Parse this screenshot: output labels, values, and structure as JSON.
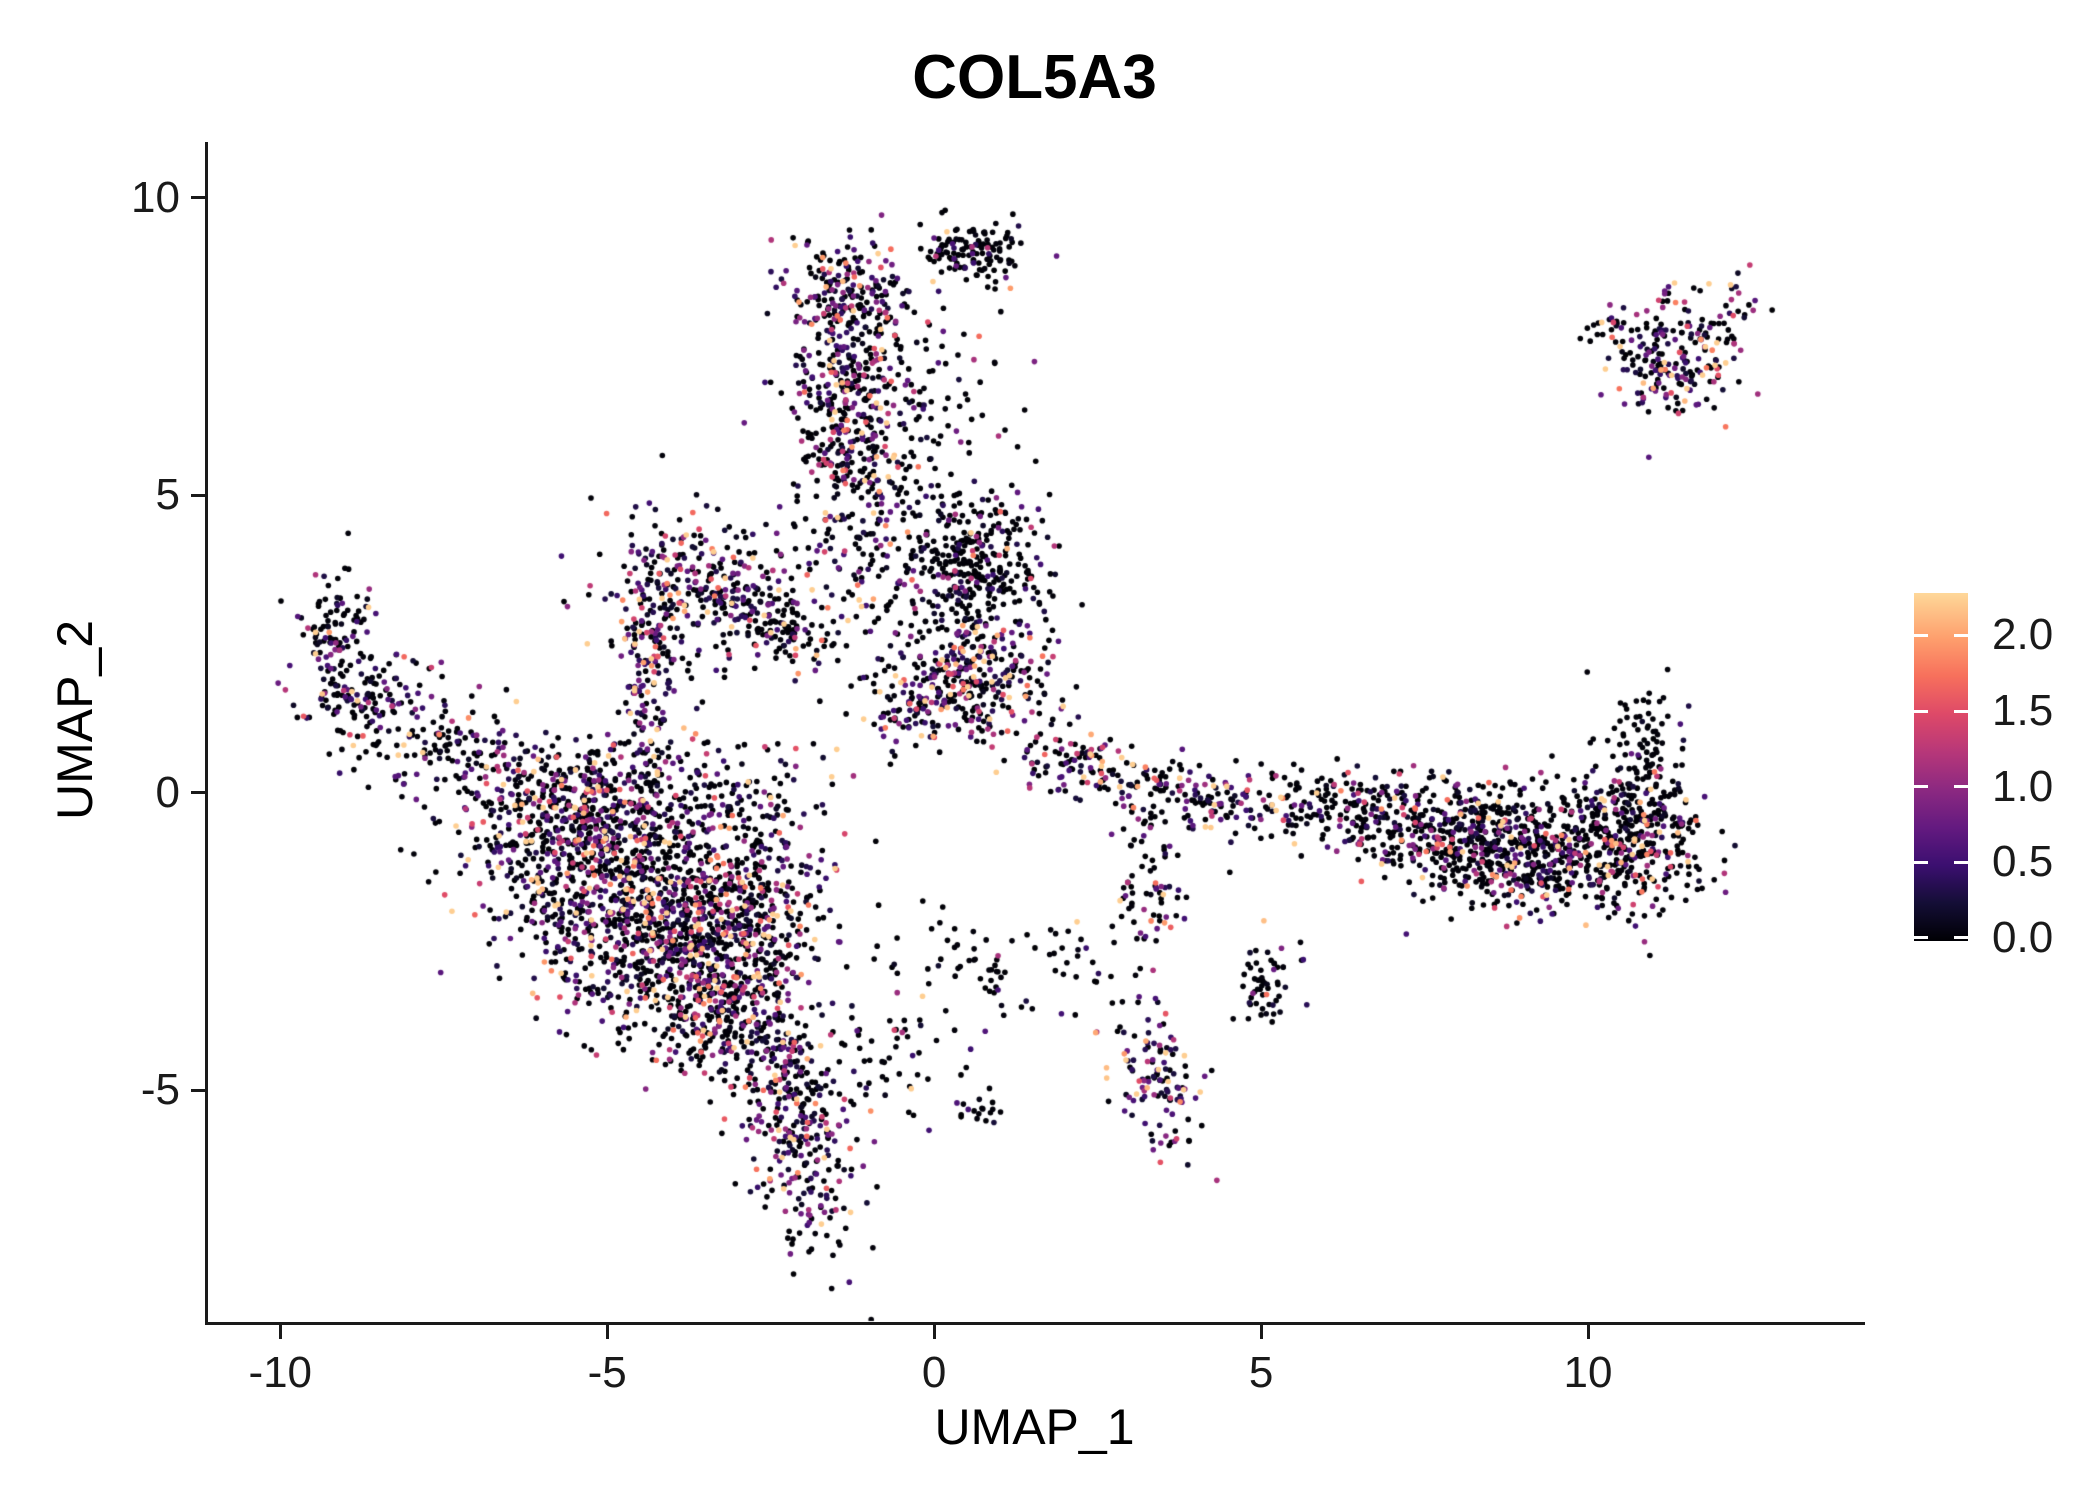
{
  "title": "COL5A3",
  "x_axis": {
    "label": "UMAP_1",
    "ticks": [
      {
        "value": -10,
        "label": "-10"
      },
      {
        "value": -5,
        "label": "-5"
      },
      {
        "value": 0,
        "label": "0"
      },
      {
        "value": 5,
        "label": "5"
      },
      {
        "value": 10,
        "label": "10"
      }
    ]
  },
  "y_axis": {
    "label": "UMAP_2",
    "ticks": [
      {
        "value": -5,
        "label": "-5"
      },
      {
        "value": 0,
        "label": "0"
      },
      {
        "value": 5,
        "label": "5"
      },
      {
        "value": 10,
        "label": "10"
      }
    ]
  },
  "legend": {
    "bar_range": [
      -0.02,
      2.28
    ],
    "ticks": [
      {
        "value": 2.0,
        "label": "2.0"
      },
      {
        "value": 1.5,
        "label": "1.5"
      },
      {
        "value": 1.0,
        "label": "1.0"
      },
      {
        "value": 0.5,
        "label": "0.5"
      },
      {
        "value": 0.0,
        "label": "0.0"
      }
    ]
  },
  "chart_data": {
    "type": "scatter",
    "title": "COL5A3",
    "xlabel": "UMAP_1",
    "ylabel": "UMAP_2",
    "xlim": [
      -11.12,
      14.19
    ],
    "ylim": [
      -8.91,
      10.92
    ],
    "grid": false,
    "legend_position": "right",
    "point_radius_px": 2.8,
    "seed": 20240,
    "color_scale": {
      "name": "magma_truncated",
      "domain": [
        0,
        2.35
      ],
      "stops": [
        {
          "t": 0.0,
          "color": "#000004"
        },
        {
          "t": 0.109,
          "color": "#140e36"
        },
        {
          "t": 0.217,
          "color": "#3b0f70"
        },
        {
          "t": 0.326,
          "color": "#641a80"
        },
        {
          "t": 0.435,
          "color": "#8c2981"
        },
        {
          "t": 0.543,
          "color": "#b73779"
        },
        {
          "t": 0.652,
          "color": "#de4968"
        },
        {
          "t": 0.761,
          "color": "#f7705c"
        },
        {
          "t": 0.87,
          "color": "#fe9f6d"
        },
        {
          "t": 0.978,
          "color": "#fece91"
        },
        {
          "t": 1.0,
          "color": "#fed89a"
        }
      ]
    },
    "clusters": [
      {
        "name": "top-cap-black",
        "center": [
          0.55,
          9.1
        ],
        "sd": [
          0.38,
          0.26
        ],
        "rot_deg": 0,
        "n": 130,
        "frac_zero": 0.85,
        "expr_mean": 0.5
      },
      {
        "name": "top-blob-mixed",
        "center": [
          -1.25,
          8.35
        ],
        "sd": [
          0.5,
          0.4
        ],
        "rot_deg": -20,
        "n": 150,
        "frac_zero": 0.45,
        "expr_mean": 0.9
      },
      {
        "name": "north-stem",
        "center": [
          -1.35,
          6.6
        ],
        "sd": [
          0.45,
          1.15
        ],
        "rot_deg": 0,
        "n": 430,
        "frac_zero": 0.5,
        "expr_mean": 0.9
      },
      {
        "name": "north-stem-east",
        "center": [
          -0.35,
          6.0
        ],
        "sd": [
          0.75,
          1.2
        ],
        "rot_deg": 0,
        "n": 160,
        "frac_zero": 0.72,
        "expr_mean": 0.7
      },
      {
        "name": "mid-triangle",
        "center": [
          -3.6,
          3.5
        ],
        "sd": [
          0.85,
          0.7
        ],
        "rot_deg": 0,
        "n": 270,
        "frac_zero": 0.45,
        "expr_mean": 0.9
      },
      {
        "name": "mid-column",
        "center": [
          -4.35,
          2.3
        ],
        "sd": [
          0.22,
          0.95
        ],
        "rot_deg": 0,
        "n": 150,
        "frac_zero": 0.35,
        "expr_mean": 1.0
      },
      {
        "name": "triangle-tail",
        "center": [
          -2.55,
          2.85
        ],
        "sd": [
          0.6,
          0.25
        ],
        "rot_deg": -35,
        "n": 110,
        "frac_zero": 0.6,
        "expr_mean": 0.8
      },
      {
        "name": "north-knot-black",
        "center": [
          0.55,
          3.95
        ],
        "sd": [
          0.55,
          0.5
        ],
        "rot_deg": 0,
        "n": 280,
        "frac_zero": 0.75,
        "expr_mean": 0.7
      },
      {
        "name": "band-east",
        "center": [
          0.65,
          1.95
        ],
        "sd": [
          0.55,
          0.5
        ],
        "rot_deg": 0,
        "n": 240,
        "frac_zero": 0.4,
        "expr_mean": 1.0
      },
      {
        "name": "band-west",
        "center": [
          -0.2,
          1.45
        ],
        "sd": [
          0.5,
          0.3
        ],
        "rot_deg": 15,
        "n": 90,
        "frac_zero": 0.4,
        "expr_mean": 1.0
      },
      {
        "name": "center-sparse",
        "center": [
          -0.5,
          2.9
        ],
        "sd": [
          1.1,
          1.0
        ],
        "rot_deg": 0,
        "n": 200,
        "frac_zero": 0.6,
        "expr_mean": 0.8
      },
      {
        "name": "hook-tip",
        "center": [
          -9.15,
          2.7
        ],
        "sd": [
          0.28,
          0.55
        ],
        "rot_deg": 0,
        "n": 100,
        "frac_zero": 0.5,
        "expr_mean": 0.9
      },
      {
        "name": "hook-bend",
        "center": [
          -8.7,
          1.6
        ],
        "sd": [
          0.5,
          0.35
        ],
        "rot_deg": 20,
        "n": 120,
        "frac_zero": 0.55,
        "expr_mean": 0.8
      },
      {
        "name": "left-arm",
        "center": [
          -7.4,
          0.7
        ],
        "sd": [
          0.85,
          0.4
        ],
        "rot_deg": -15,
        "n": 150,
        "frac_zero": 0.6,
        "expr_mean": 0.8
      },
      {
        "name": "mass-northwest",
        "center": [
          -5.8,
          -0.4
        ],
        "sd": [
          0.75,
          0.55
        ],
        "rot_deg": 0,
        "n": 260,
        "frac_zero": 0.55,
        "expr_mean": 0.9
      },
      {
        "name": "mass-top",
        "center": [
          -4.4,
          0.1
        ],
        "sd": [
          1.1,
          0.5
        ],
        "rot_deg": 0,
        "n": 220,
        "frac_zero": 0.6,
        "expr_mean": 0.8
      },
      {
        "name": "mass-core",
        "center": [
          -4.9,
          -1.4
        ],
        "sd": [
          1.0,
          0.85
        ],
        "rot_deg": 0,
        "n": 720,
        "frac_zero": 0.5,
        "expr_mean": 0.9
      },
      {
        "name": "mass-mid",
        "center": [
          -3.9,
          -2.6
        ],
        "sd": [
          0.85,
          0.8
        ],
        "rot_deg": 0,
        "n": 620,
        "frac_zero": 0.5,
        "expr_mean": 0.9
      },
      {
        "name": "mass-low",
        "center": [
          -3.15,
          -3.8
        ],
        "sd": [
          0.55,
          0.6
        ],
        "rot_deg": 0,
        "n": 260,
        "frac_zero": 0.5,
        "expr_mean": 0.9
      },
      {
        "name": "mass-east",
        "center": [
          -2.7,
          -1.6
        ],
        "sd": [
          0.55,
          0.95
        ],
        "rot_deg": 0,
        "n": 260,
        "frac_zero": 0.55,
        "expr_mean": 0.9
      },
      {
        "name": "south-stem",
        "center": [
          -2.1,
          -5.7
        ],
        "sd": [
          0.38,
          1.05
        ],
        "rot_deg": 8,
        "n": 320,
        "frac_zero": 0.45,
        "expr_mean": 0.9
      },
      {
        "name": "south-sparse",
        "center": [
          -1.0,
          -4.4
        ],
        "sd": [
          0.7,
          0.6
        ],
        "rot_deg": 0,
        "n": 70,
        "frac_zero": 0.7,
        "expr_mean": 0.8
      },
      {
        "name": "arm-west",
        "center": [
          2.2,
          0.5
        ],
        "sd": [
          0.55,
          0.3
        ],
        "rot_deg": -10,
        "n": 110,
        "frac_zero": 0.5,
        "expr_mean": 0.9
      },
      {
        "name": "arm-east",
        "center": [
          3.8,
          -0.05
        ],
        "sd": [
          0.75,
          0.3
        ],
        "rot_deg": -8,
        "n": 120,
        "frac_zero": 0.55,
        "expr_mean": 0.9
      },
      {
        "name": "arm-branch",
        "center": [
          3.3,
          -1.5
        ],
        "sd": [
          0.28,
          0.7
        ],
        "rot_deg": 0,
        "n": 80,
        "frac_zero": 0.5,
        "expr_mean": 1.0
      },
      {
        "name": "south-isle",
        "center": [
          3.45,
          -4.9
        ],
        "sd": [
          0.28,
          0.6
        ],
        "rot_deg": 15,
        "n": 120,
        "frac_zero": 0.35,
        "expr_mean": 1.0
      },
      {
        "name": "black-band",
        "center": [
          1.2,
          -2.9
        ],
        "sd": [
          1.2,
          0.4
        ],
        "rot_deg": -8,
        "n": 80,
        "frac_zero": 0.85,
        "expr_mean": 0.6
      },
      {
        "name": "black-knot",
        "center": [
          5.0,
          -3.2
        ],
        "sd": [
          0.25,
          0.3
        ],
        "rot_deg": 0,
        "n": 55,
        "frac_zero": 0.8,
        "expr_mean": 0.6
      },
      {
        "name": "tiny-pair",
        "center": [
          0.7,
          -5.3
        ],
        "sd": [
          0.18,
          0.15
        ],
        "rot_deg": 0,
        "n": 16,
        "frac_zero": 0.9,
        "expr_mean": 0.4
      },
      {
        "name": "right-tip",
        "center": [
          6.4,
          -0.3
        ],
        "sd": [
          0.6,
          0.35
        ],
        "rot_deg": -10,
        "n": 90,
        "frac_zero": 0.7,
        "expr_mean": 0.7
      },
      {
        "name": "right-mid",
        "center": [
          7.6,
          -0.6
        ],
        "sd": [
          0.9,
          0.45
        ],
        "rot_deg": -5,
        "n": 300,
        "frac_zero": 0.65,
        "expr_mean": 0.8
      },
      {
        "name": "right-core",
        "center": [
          9.1,
          -1.0
        ],
        "sd": [
          0.9,
          0.5
        ],
        "rot_deg": 0,
        "n": 480,
        "frac_zero": 0.6,
        "expr_mean": 0.8
      },
      {
        "name": "right-east",
        "center": [
          10.6,
          -0.7
        ],
        "sd": [
          0.65,
          0.6
        ],
        "rot_deg": 0,
        "n": 360,
        "frac_zero": 0.65,
        "expr_mean": 0.8
      },
      {
        "name": "right-trail",
        "center": [
          10.9,
          0.55
        ],
        "sd": [
          0.3,
          0.6
        ],
        "rot_deg": 0,
        "n": 90,
        "frac_zero": 0.85,
        "expr_mean": 0.6
      },
      {
        "name": "gap-sparse",
        "center": [
          5.3,
          -0.35
        ],
        "sd": [
          0.5,
          0.3
        ],
        "rot_deg": 0,
        "n": 40,
        "frac_zero": 0.6,
        "expr_mean": 0.8
      },
      {
        "name": "topright-core",
        "center": [
          11.3,
          7.3
        ],
        "sd": [
          0.55,
          0.5
        ],
        "rot_deg": 25,
        "n": 210,
        "frac_zero": 0.45,
        "expr_mean": 0.9
      },
      {
        "name": "topright-tail",
        "center": [
          12.3,
          8.2
        ],
        "sd": [
          0.25,
          0.25
        ],
        "rot_deg": 0,
        "n": 18,
        "frac_zero": 0.4,
        "expr_mean": 1.0
      },
      {
        "name": "topright-west",
        "center": [
          10.45,
          7.8
        ],
        "sd": [
          0.25,
          0.15
        ],
        "rot_deg": 0,
        "n": 18,
        "frac_zero": 0.8,
        "expr_mean": 0.6
      }
    ]
  }
}
